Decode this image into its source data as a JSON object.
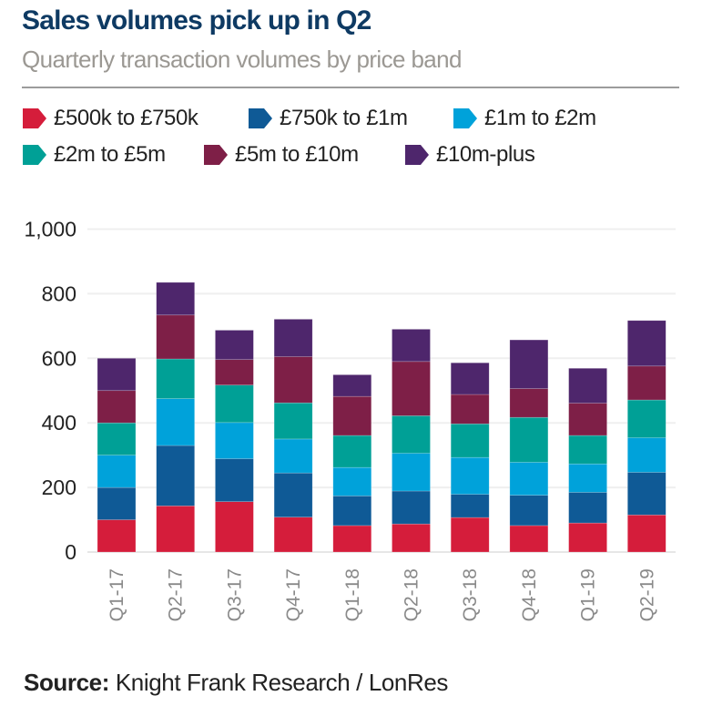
{
  "chart_data": {
    "type": "bar",
    "stacked": true,
    "title": "Sales volumes pick up in Q2",
    "subtitle": "Quarterly transaction volumes by price band",
    "xlabel": "",
    "ylabel": "",
    "ylim": [
      0,
      1000
    ],
    "yticks": [
      0,
      200,
      400,
      600,
      800,
      1000
    ],
    "ytick_labels": [
      "0",
      "200",
      "400",
      "600",
      "800",
      "1,000"
    ],
    "grid": true,
    "legend_position": "top",
    "categories": [
      "Q1-17",
      "Q2-17",
      "Q3-17",
      "Q4-17",
      "Q1-18",
      "Q2-18",
      "Q3-18",
      "Q4-18",
      "Q1-19",
      "Q2-19"
    ],
    "series": [
      {
        "name": "£500k to £750k",
        "color": "#d51d3b",
        "values": [
          100,
          143,
          156,
          108,
          82,
          87,
          107,
          82,
          90,
          115
        ]
      },
      {
        "name": "£750k to £1m",
        "color": "#0f5a96",
        "values": [
          100,
          187,
          133,
          137,
          92,
          102,
          72,
          94,
          95,
          132
        ]
      },
      {
        "name": "£1m to £2m",
        "color": "#00a2da",
        "values": [
          100,
          145,
          112,
          105,
          88,
          117,
          114,
          102,
          88,
          107
        ]
      },
      {
        "name": "£2m to £5m",
        "color": "#00a096",
        "values": [
          100,
          123,
          116,
          112,
          99,
          116,
          104,
          139,
          88,
          117
        ]
      },
      {
        "name": "£5m to £10m",
        "color": "#7e1f47",
        "values": [
          100,
          136,
          79,
          143,
          121,
          168,
          91,
          89,
          100,
          105
        ]
      },
      {
        "name": "£10m-plus",
        "color": "#4e266c",
        "values": [
          100,
          101,
          91,
          116,
          67,
          100,
          98,
          151,
          108,
          141
        ]
      }
    ]
  },
  "header": {
    "title": "Sales volumes pick up in Q2",
    "subtitle": "Quarterly transaction volumes by price band"
  },
  "source": {
    "label": "Source:",
    "text": " Knight Frank Research / LonRes"
  }
}
